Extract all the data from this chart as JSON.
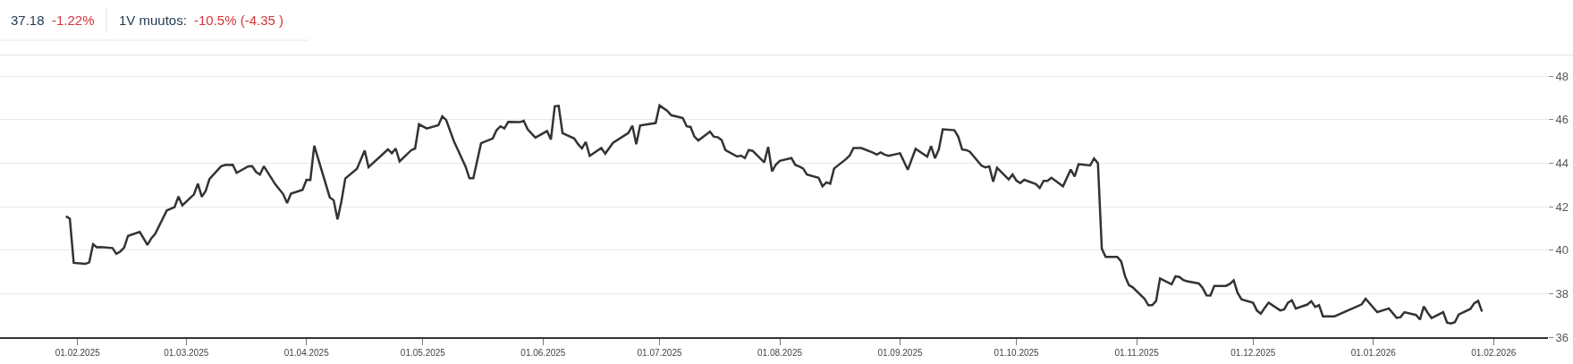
{
  "chart_data": {
    "type": "line",
    "annotations": [
      "37.18",
      "-1.22%",
      "1V muutos:",
      "-10.5% (-4.35 )"
    ],
    "x": [
      "2025-01-29",
      "2025-01-30",
      "2025-01-31",
      "2025-02-03",
      "2025-02-04",
      "2025-02-05",
      "2025-02-06",
      "2025-02-07",
      "2025-02-10",
      "2025-02-11",
      "2025-02-12",
      "2025-02-13",
      "2025-02-14",
      "2025-02-17",
      "2025-02-18",
      "2025-02-19",
      "2025-02-20",
      "2025-02-21",
      "2025-02-24",
      "2025-02-26",
      "2025-02-27",
      "2025-02-28",
      "2025-03-03",
      "2025-03-04",
      "2025-03-05",
      "2025-03-06",
      "2025-03-07",
      "2025-03-10",
      "2025-03-11",
      "2025-03-13",
      "2025-03-14",
      "2025-03-17",
      "2025-03-18",
      "2025-03-19",
      "2025-03-20",
      "2025-03-21",
      "2025-03-24",
      "2025-03-26",
      "2025-03-27",
      "2025-03-28",
      "2025-03-31",
      "2025-04-01",
      "2025-04-02",
      "2025-04-03",
      "2025-04-07",
      "2025-04-08",
      "2025-04-09",
      "2025-04-10",
      "2025-04-11",
      "2025-04-14",
      "2025-04-16",
      "2025-04-17",
      "2025-04-22",
      "2025-04-23",
      "2025-04-24",
      "2025-04-25",
      "2025-04-28",
      "2025-04-29",
      "2025-04-30",
      "2025-05-02",
      "2025-05-05",
      "2025-05-06",
      "2025-05-07",
      "2025-05-09",
      "2025-05-12",
      "2025-05-13",
      "2025-05-14",
      "2025-05-16",
      "2025-05-19",
      "2025-05-20",
      "2025-05-21",
      "2025-05-22",
      "2025-05-23",
      "2025-05-26",
      "2025-05-27",
      "2025-05-28",
      "2025-05-30",
      "2025-06-02",
      "2025-06-03",
      "2025-06-04",
      "2025-06-05",
      "2025-06-06",
      "2025-06-09",
      "2025-06-10",
      "2025-06-11",
      "2025-06-12",
      "2025-06-13",
      "2025-06-16",
      "2025-06-17",
      "2025-06-19",
      "2025-06-23",
      "2025-06-24",
      "2025-06-25",
      "2025-06-26",
      "2025-06-30",
      "2025-07-01",
      "2025-07-03",
      "2025-07-04",
      "2025-07-07",
      "2025-07-08",
      "2025-07-09",
      "2025-07-10",
      "2025-07-11",
      "2025-07-14",
      "2025-07-15",
      "2025-07-16",
      "2025-07-17",
      "2025-07-18",
      "2025-07-21",
      "2025-07-22",
      "2025-07-23",
      "2025-07-24",
      "2025-07-25",
      "2025-07-28",
      "2025-07-29",
      "2025-07-30",
      "2025-07-31",
      "2025-08-01",
      "2025-08-04",
      "2025-08-05",
      "2025-08-06",
      "2025-08-07",
      "2025-08-08",
      "2025-08-11",
      "2025-08-12",
      "2025-08-13",
      "2025-08-14",
      "2025-08-15",
      "2025-08-18",
      "2025-08-19",
      "2025-08-20",
      "2025-08-22",
      "2025-08-25",
      "2025-08-26",
      "2025-08-27",
      "2025-08-28",
      "2025-08-29",
      "2025-09-01",
      "2025-09-03",
      "2025-09-05",
      "2025-09-08",
      "2025-09-09",
      "2025-09-10",
      "2025-09-11",
      "2025-09-12",
      "2025-09-15",
      "2025-09-16",
      "2025-09-17",
      "2025-09-18",
      "2025-09-19",
      "2025-09-22",
      "2025-09-23",
      "2025-09-24",
      "2025-09-25",
      "2025-09-26",
      "2025-09-29",
      "2025-09-30",
      "2025-10-01",
      "2025-10-02",
      "2025-10-03",
      "2025-10-06",
      "2025-10-07",
      "2025-10-08",
      "2025-10-09",
      "2025-10-10",
      "2025-10-13",
      "2025-10-15",
      "2025-10-16",
      "2025-10-17",
      "2025-10-20",
      "2025-10-21",
      "2025-10-22",
      "2025-10-23",
      "2025-10-24",
      "2025-10-27",
      "2025-10-28",
      "2025-10-29",
      "2025-10-30",
      "2025-10-31",
      "2025-11-03",
      "2025-11-04",
      "2025-11-05",
      "2025-11-06",
      "2025-11-07",
      "2025-11-10",
      "2025-11-11",
      "2025-11-12",
      "2025-11-13",
      "2025-11-14",
      "2025-11-17",
      "2025-11-18",
      "2025-11-19",
      "2025-11-20",
      "2025-11-21",
      "2025-11-24",
      "2025-11-25",
      "2025-11-26",
      "2025-11-27",
      "2025-11-28",
      "2025-12-01",
      "2025-12-02",
      "2025-12-03",
      "2025-12-04",
      "2025-12-05",
      "2025-12-08",
      "2025-12-09",
      "2025-12-10",
      "2025-12-11",
      "2025-12-12",
      "2025-12-15",
      "2025-12-16",
      "2025-12-17",
      "2025-12-18",
      "2025-12-19",
      "2025-12-22",
      "2025-12-29",
      "2025-12-30",
      "2026-01-02",
      "2026-01-05",
      "2026-01-07",
      "2026-01-08",
      "2026-01-09",
      "2026-01-12",
      "2026-01-13",
      "2026-01-14",
      "2026-01-15",
      "2026-01-16",
      "2026-01-19",
      "2026-01-20",
      "2026-01-21",
      "2026-01-22",
      "2026-01-23",
      "2026-01-26",
      "2026-01-27",
      "2026-01-28",
      "2026-01-29"
    ],
    "series": [
      {
        "color": "#333333",
        "values": [
          41.56,
          41.45,
          39.42,
          39.37,
          39.44,
          40.28,
          40.13,
          40.14,
          40.1,
          39.83,
          39.94,
          40.12,
          40.66,
          40.84,
          40.55,
          40.24,
          40.55,
          40.75,
          41.83,
          41.98,
          42.47,
          42.06,
          42.57,
          43.06,
          42.46,
          42.72,
          43.28,
          43.86,
          43.92,
          43.93,
          43.56,
          43.86,
          43.87,
          43.6,
          43.48,
          43.86,
          43.02,
          42.58,
          42.17,
          42.6,
          42.78,
          43.24,
          43.23,
          44.81,
          42.43,
          42.3,
          41.42,
          42.24,
          43.3,
          43.75,
          44.59,
          43.82,
          44.64,
          44.46,
          44.68,
          44.09,
          44.6,
          44.68,
          45.79,
          45.6,
          45.75,
          46.16,
          45.99,
          45.01,
          43.85,
          43.31,
          43.31,
          44.92,
          45.14,
          45.52,
          45.7,
          45.6,
          45.9,
          45.89,
          45.95,
          45.56,
          45.18,
          45.48,
          45.09,
          46.62,
          46.64,
          45.38,
          45.14,
          44.88,
          44.68,
          44.98,
          44.34,
          44.7,
          44.44,
          44.94,
          45.4,
          45.73,
          44.88,
          45.74,
          45.85,
          46.66,
          46.41,
          46.21,
          46.08,
          45.7,
          45.67,
          45.22,
          45.05,
          45.45,
          45.22,
          45.2,
          45.07,
          44.6,
          44.31,
          44.35,
          44.24,
          44.61,
          44.57,
          44.04,
          44.75,
          43.63,
          43.94,
          44.11,
          44.24,
          43.92,
          43.85,
          43.76,
          43.48,
          43.33,
          42.94,
          43.12,
          43.06,
          43.76,
          44.18,
          44.35,
          44.7,
          44.7,
          44.49,
          44.4,
          44.5,
          44.4,
          44.34,
          44.46,
          43.7,
          44.66,
          44.31,
          44.79,
          44.23,
          44.64,
          45.56,
          45.52,
          45.22,
          44.63,
          44.61,
          44.53,
          43.89,
          43.81,
          43.86,
          43.15,
          43.79,
          43.26,
          43.48,
          43.2,
          43.09,
          43.24,
          43.04,
          42.86,
          43.19,
          43.19,
          43.33,
          42.94,
          43.71,
          43.39,
          43.96,
          43.9,
          44.22,
          44.0,
          40.07,
          39.69,
          39.69,
          39.48,
          38.8,
          38.39,
          38.29,
          37.77,
          37.47,
          37.47,
          37.67,
          38.7,
          38.43,
          38.8,
          38.77,
          38.63,
          38.57,
          38.47,
          38.26,
          37.92,
          37.91,
          38.36,
          38.36,
          38.45,
          38.61,
          38.04,
          37.74,
          37.58,
          37.22,
          37.08,
          37.35,
          37.59,
          37.23,
          37.28,
          37.59,
          37.7,
          37.32,
          37.5,
          37.65,
          37.39,
          37.47,
          36.96,
          36.96,
          37.51,
          37.77,
          37.15,
          37.32,
          36.89,
          36.92,
          37.15,
          37.02,
          36.81,
          37.41,
          37.12,
          36.88,
          37.15,
          36.67,
          36.63,
          36.69,
          37.04,
          37.3,
          37.56,
          37.67,
          37.18
        ]
      }
    ],
    "xlim": [
      "2025-01-12",
      "2026-02-15"
    ],
    "xticks": [
      {
        "value": "2025-02-01",
        "label": "01.02.2025"
      },
      {
        "value": "2025-03-01",
        "label": "01.03.2025"
      },
      {
        "value": "2025-04-01",
        "label": "01.04.2025"
      },
      {
        "value": "2025-05-01",
        "label": "01.05.2025"
      },
      {
        "value": "2025-06-01",
        "label": "01.06.2025"
      },
      {
        "value": "2025-07-01",
        "label": "01.07.2025"
      },
      {
        "value": "2025-08-01",
        "label": "01.08.2025"
      },
      {
        "value": "2025-09-01",
        "label": "01.09.2025"
      },
      {
        "value": "2025-10-01",
        "label": "01.10.2025"
      },
      {
        "value": "2025-11-01",
        "label": "01.11.2025"
      },
      {
        "value": "2025-12-01",
        "label": "01.12.2025"
      },
      {
        "value": "2026-01-01",
        "label": "01.01.2026"
      },
      {
        "value": "2026-02-01",
        "label": "01.02.2026"
      }
    ],
    "ylim": [
      36,
      49
    ],
    "yticks": [
      36,
      38,
      40,
      42,
      44,
      46,
      48
    ],
    "grid": "y",
    "line_style": "solid"
  }
}
